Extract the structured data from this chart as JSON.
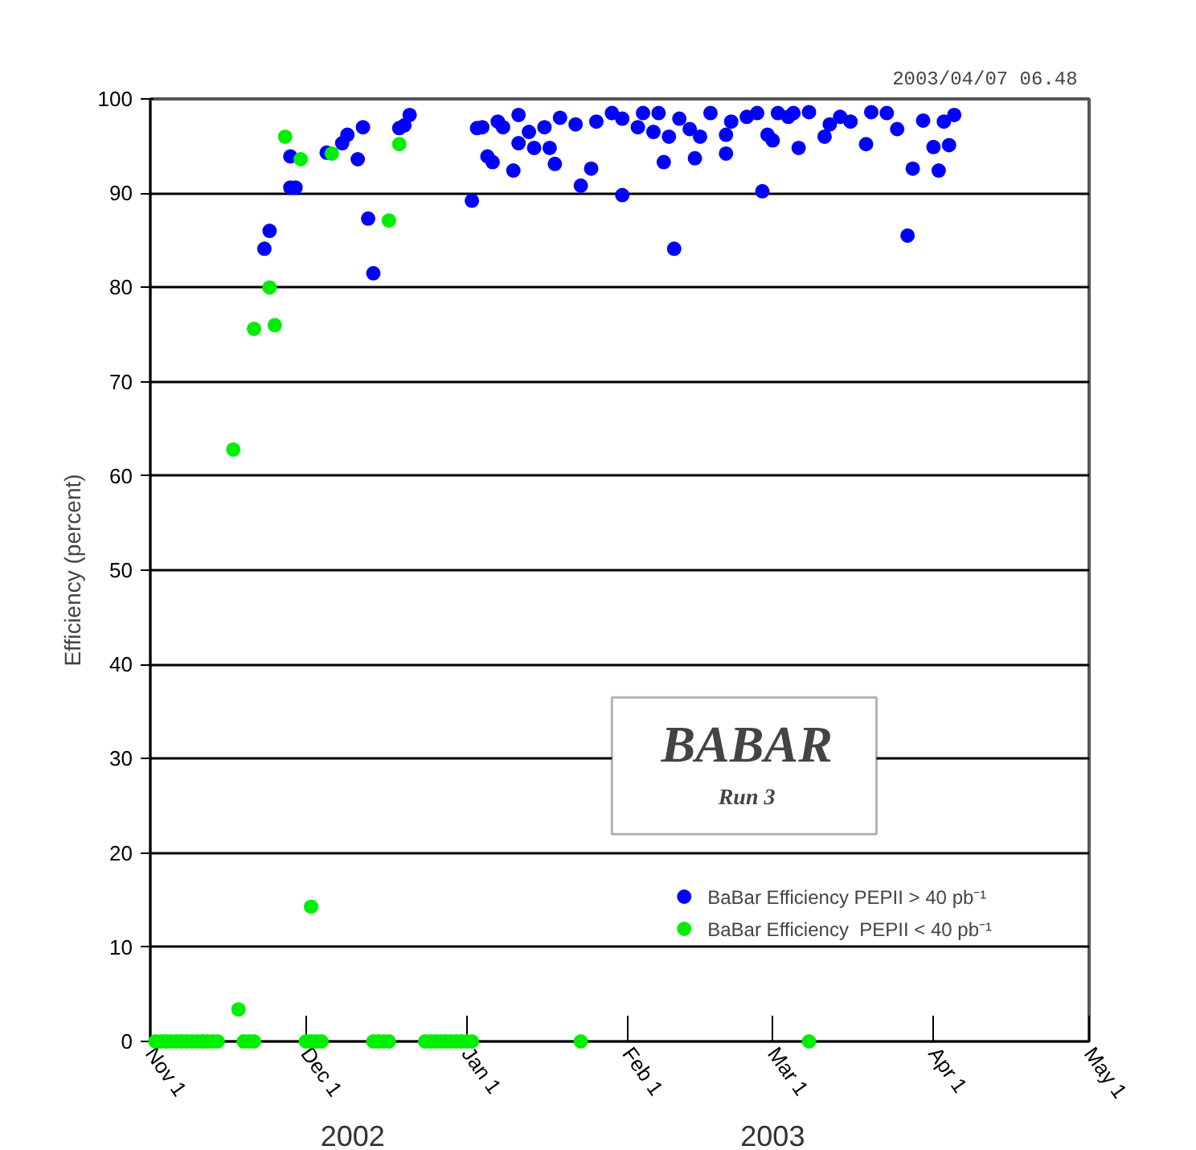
{
  "chart_data": {
    "type": "scatter",
    "title": "2003/04/07  06.48",
    "ylabel": "Efficiency (percent)",
    "annotations": [
      "2002",
      "2003",
      "BABAR",
      "Run 3"
    ],
    "xlim": [
      "2002-11-01",
      "2003-05-01"
    ],
    "xticks": [
      {
        "value": "2002-11-01",
        "label": "Nov 1"
      },
      {
        "value": "2002-12-01",
        "label": "Dec 1"
      },
      {
        "value": "2003-01-01",
        "label": "Jan 1"
      },
      {
        "value": "2003-02-01",
        "label": "Feb 1"
      },
      {
        "value": "2003-03-01",
        "label": "Mar 1"
      },
      {
        "value": "2003-04-01",
        "label": "Apr 1"
      },
      {
        "value": "2003-05-01",
        "label": "May 1"
      }
    ],
    "ylim": [
      0,
      100
    ],
    "yticks": [
      0,
      10,
      20,
      30,
      40,
      50,
      60,
      70,
      80,
      90,
      100
    ],
    "grid": "y",
    "legend": "bottom right",
    "marker": "circle",
    "series": [
      {
        "name": "BaBar Efficiency PEPII > 40 pb⁻¹",
        "color": "#0000ff",
        "x": [
          "2002-11-23",
          "2002-11-24",
          "2002-11-28",
          "2002-11-28",
          "2002-11-29",
          "2002-12-05",
          "2002-12-08",
          "2002-12-09",
          "2002-12-11",
          "2002-12-12",
          "2002-12-13",
          "2002-12-14",
          "2002-12-19",
          "2002-12-20",
          "2002-12-21",
          "2003-01-02",
          "2003-01-03",
          "2003-01-04",
          "2003-01-05",
          "2003-01-06",
          "2003-01-07",
          "2003-01-08",
          "2003-01-10",
          "2003-01-11",
          "2003-01-11",
          "2003-01-13",
          "2003-01-14",
          "2003-01-16",
          "2003-01-17",
          "2003-01-18",
          "2003-01-19",
          "2003-01-22",
          "2003-01-23",
          "2003-01-25",
          "2003-01-26",
          "2003-01-29",
          "2003-01-31",
          "2003-01-31",
          "2003-02-03",
          "2003-02-04",
          "2003-02-06",
          "2003-02-07",
          "2003-02-08",
          "2003-02-09",
          "2003-02-10",
          "2003-02-11",
          "2003-02-13",
          "2003-02-14",
          "2003-02-15",
          "2003-02-17",
          "2003-02-20",
          "2003-02-20",
          "2003-02-21",
          "2003-02-24",
          "2003-02-26",
          "2003-02-27",
          "2003-02-28",
          "2003-03-01",
          "2003-03-02",
          "2003-03-04",
          "2003-03-05",
          "2003-03-06",
          "2003-03-08",
          "2003-03-11",
          "2003-03-12",
          "2003-03-14",
          "2003-03-16",
          "2003-03-19",
          "2003-03-20",
          "2003-03-23",
          "2003-03-25",
          "2003-03-27",
          "2003-03-28",
          "2003-03-30",
          "2003-04-01",
          "2003-04-02",
          "2003-04-03",
          "2003-04-04",
          "2003-04-05"
        ],
        "values": [
          84.1,
          86.0,
          93.9,
          90.6,
          90.6,
          94.3,
          95.3,
          96.2,
          93.6,
          97.0,
          87.3,
          81.5,
          96.9,
          97.2,
          98.3,
          89.2,
          96.9,
          97.0,
          93.9,
          93.3,
          97.6,
          97.0,
          92.4,
          98.3,
          95.3,
          96.5,
          94.8,
          97.0,
          94.8,
          93.1,
          98.0,
          97.3,
          90.8,
          92.6,
          97.6,
          98.5,
          97.9,
          89.8,
          97.0,
          98.5,
          96.5,
          98.5,
          93.3,
          96.0,
          84.1,
          97.9,
          96.8,
          93.7,
          96.0,
          98.5,
          94.2,
          96.2,
          97.6,
          98.1,
          98.5,
          90.2,
          96.2,
          95.6,
          98.5,
          98.1,
          98.5,
          94.8,
          98.6,
          96.0,
          97.3,
          98.1,
          97.6,
          95.2,
          98.6,
          98.5,
          96.8,
          85.5,
          92.6,
          97.7,
          94.9,
          92.4,
          97.6,
          95.1,
          98.3
        ]
      },
      {
        "name": "BaBar Efficiency  PEPII < 40 pb⁻¹",
        "color": "#00ee00",
        "x": [
          "2002-11-02",
          "2002-11-03",
          "2002-11-04",
          "2002-11-05",
          "2002-11-06",
          "2002-11-07",
          "2002-11-08",
          "2002-11-09",
          "2002-11-10",
          "2002-11-11",
          "2002-11-12",
          "2002-11-13",
          "2002-11-14",
          "2002-11-19",
          "2002-11-20",
          "2002-11-21",
          "2002-12-01",
          "2002-12-02",
          "2002-12-03",
          "2002-12-04",
          "2002-12-14",
          "2002-12-15",
          "2002-12-16",
          "2002-12-17",
          "2002-12-24",
          "2002-12-25",
          "2002-12-26",
          "2002-12-27",
          "2002-12-28",
          "2002-12-29",
          "2002-12-30",
          "2002-12-31",
          "2003-01-01",
          "2003-01-02",
          "2003-01-23",
          "2003-03-08",
          "2002-11-18",
          "2002-12-02",
          "2002-11-17",
          "2002-11-21",
          "2002-11-24",
          "2002-11-25",
          "2002-11-27",
          "2002-11-30",
          "2002-12-06",
          "2002-12-17",
          "2002-12-19"
        ],
        "values": [
          0,
          0,
          0,
          0,
          0,
          0,
          0,
          0,
          0,
          0,
          0,
          0,
          0,
          0,
          0,
          0,
          0,
          0,
          0,
          0,
          0,
          0,
          0,
          0,
          0,
          0,
          0,
          0,
          0,
          0,
          0,
          0,
          0,
          0,
          0,
          0,
          3.4,
          14.3,
          62.8,
          75.6,
          80.0,
          76.0,
          96.0,
          93.6,
          94.2,
          87.1,
          95.2
        ]
      }
    ]
  }
}
